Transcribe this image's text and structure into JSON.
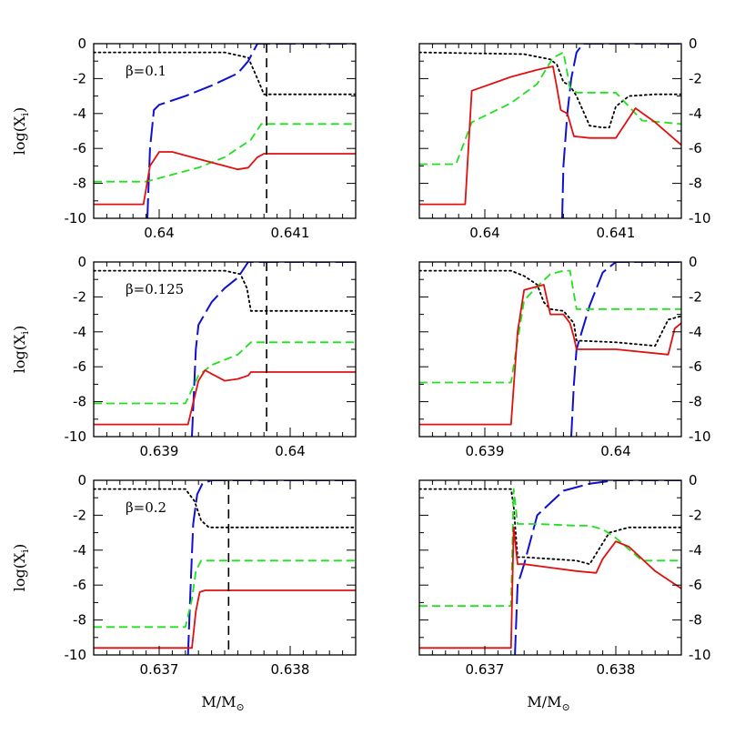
{
  "figure": {
    "ylabel": "log(X",
    "ylabel_sub": "i",
    "xlabel": "M/M",
    "xlabel_sub": "⊙",
    "colors": {
      "dotted": "#000000",
      "blue": "#1010d0",
      "green": "#20e020",
      "red": "#e01010",
      "vline": "#000000"
    }
  },
  "chart_data": [
    {
      "type": "line",
      "row": 0,
      "col": 0,
      "xlim": [
        0.6395,
        0.6415
      ],
      "ylim": [
        -10,
        0
      ],
      "xticks": [
        0.64,
        0.641
      ],
      "xtick_labels": [
        "0.64",
        "0.641"
      ],
      "yticks": [
        0,
        -2,
        -4,
        -6,
        -8,
        -10
      ],
      "ytick_labels": [
        "0",
        "-2",
        "-4",
        "-6",
        "-8",
        "-10"
      ],
      "annotation": "β=0.1",
      "vline": 0.64082,
      "series": [
        {
          "style": "dotted",
          "x": [
            0.6395,
            0.6405,
            0.64068,
            0.64075,
            0.6408,
            0.6415
          ],
          "y": [
            -0.5,
            -0.5,
            -0.8,
            -2.0,
            -2.9,
            -2.9
          ]
        },
        {
          "style": "blue",
          "x": [
            0.63991,
            0.63993,
            0.63996,
            0.64,
            0.6402,
            0.6404,
            0.6406,
            0.64068,
            0.64075,
            0.6415
          ],
          "y": [
            -10,
            -6,
            -3.8,
            -3.5,
            -3.0,
            -2.4,
            -1.7,
            -1.0,
            0,
            0
          ]
        },
        {
          "style": "green",
          "x": [
            0.6395,
            0.6399,
            0.6401,
            0.6403,
            0.6405,
            0.6407,
            0.64078,
            0.6415
          ],
          "y": [
            -7.9,
            -7.9,
            -7.5,
            -7.1,
            -6.5,
            -5.5,
            -4.6,
            -4.6
          ]
        },
        {
          "style": "red",
          "x": [
            0.6395,
            0.63988,
            0.63993,
            0.64,
            0.6401,
            0.6403,
            0.6405,
            0.6406,
            0.64068,
            0.64075,
            0.6408,
            0.6415
          ],
          "y": [
            -9.2,
            -9.2,
            -7.0,
            -6.2,
            -6.2,
            -6.6,
            -7.0,
            -7.2,
            -7.1,
            -6.5,
            -6.3,
            -6.3
          ]
        }
      ]
    },
    {
      "type": "line",
      "row": 0,
      "col": 1,
      "xlim": [
        0.6395,
        0.6415
      ],
      "ylim": [
        -10,
        0
      ],
      "xticks": [
        0.64,
        0.641
      ],
      "xtick_labels": [
        "0.64",
        "0.641"
      ],
      "yticks": [
        0,
        -2,
        -4,
        -6,
        -8,
        -10
      ],
      "ytick_labels": [
        "0",
        "-2",
        "-4",
        "-6",
        "-8",
        "-10"
      ],
      "annotation": "",
      "vline": null,
      "series": [
        {
          "style": "dotted",
          "x": [
            0.6395,
            0.6403,
            0.6405,
            0.64055,
            0.6406,
            0.64065,
            0.6407,
            0.6408,
            0.6409,
            0.64095,
            0.641,
            0.6411,
            0.6413,
            0.6415
          ],
          "y": [
            -0.5,
            -0.6,
            -0.9,
            -1.2,
            -2.2,
            -2.4,
            -3.0,
            -4.7,
            -4.8,
            -4.8,
            -3.6,
            -3.0,
            -2.9,
            -2.9
          ]
        },
        {
          "style": "blue",
          "x": [
            0.64059,
            0.6406,
            0.64063,
            0.64066,
            0.6407,
            0.64075,
            0.6415
          ],
          "y": [
            -10,
            -7,
            -4,
            -2,
            -0.5,
            0,
            0
          ]
        },
        {
          "style": "green",
          "x": [
            0.6395,
            0.63978,
            0.6399,
            0.6402,
            0.6404,
            0.64052,
            0.6406,
            0.64065,
            0.6407,
            0.641,
            0.6412,
            0.6415
          ],
          "y": [
            -6.9,
            -6.9,
            -4.5,
            -3.4,
            -2.3,
            -0.8,
            -0.5,
            -2.5,
            -2.8,
            -2.8,
            -4.4,
            -4.6
          ]
        },
        {
          "style": "red",
          "x": [
            0.6395,
            0.63985,
            0.6399,
            0.6402,
            0.6404,
            0.64052,
            0.64055,
            0.64058,
            0.64063,
            0.64068,
            0.6408,
            0.641,
            0.64115,
            0.6413,
            0.6415
          ],
          "y": [
            -9.2,
            -9.2,
            -2.7,
            -1.9,
            -1.5,
            -1.3,
            -2.5,
            -3.8,
            -4.0,
            -5.3,
            -5.4,
            -5.4,
            -3.7,
            -4.5,
            -5.8
          ]
        }
      ]
    },
    {
      "type": "line",
      "row": 1,
      "col": 0,
      "xlim": [
        0.6385,
        0.6405
      ],
      "ylim": [
        -10,
        0
      ],
      "xticks": [
        0.639,
        0.64
      ],
      "xtick_labels": [
        "0.639",
        "0.64"
      ],
      "yticks": [
        0,
        -2,
        -4,
        -6,
        -8,
        -10
      ],
      "ytick_labels": [
        "0",
        "-2",
        "-4",
        "-6",
        "-8",
        "-10"
      ],
      "annotation": "β=0.125",
      "vline": 0.63982,
      "series": [
        {
          "style": "dotted",
          "x": [
            0.6385,
            0.6395,
            0.63962,
            0.63967,
            0.6397,
            0.6405
          ],
          "y": [
            -0.5,
            -0.5,
            -0.7,
            -1.5,
            -2.8,
            -2.8
          ]
        },
        {
          "style": "blue",
          "x": [
            0.63925,
            0.63928,
            0.6393,
            0.6394,
            0.6395,
            0.6396,
            0.63968,
            0.6405
          ],
          "y": [
            -10,
            -5,
            -3.6,
            -2.3,
            -1.5,
            -0.9,
            0,
            0
          ]
        },
        {
          "style": "green",
          "x": [
            0.6385,
            0.6392,
            0.6393,
            0.6394,
            0.6396,
            0.6397,
            0.6405
          ],
          "y": [
            -8.1,
            -8.1,
            -6.5,
            -5.9,
            -5.3,
            -4.6,
            -4.6
          ]
        },
        {
          "style": "red",
          "x": [
            0.6385,
            0.63922,
            0.6393,
            0.63935,
            0.6394,
            0.6395,
            0.6396,
            0.63968,
            0.6397,
            0.6405
          ],
          "y": [
            -9.3,
            -9.3,
            -6.8,
            -6.2,
            -6.4,
            -6.8,
            -6.7,
            -6.5,
            -6.3,
            -6.3
          ]
        }
      ]
    },
    {
      "type": "line",
      "row": 1,
      "col": 1,
      "xlim": [
        0.6385,
        0.6405
      ],
      "ylim": [
        -10,
        0
      ],
      "xticks": [
        0.639,
        0.64
      ],
      "xtick_labels": [
        "0.639",
        "0.64"
      ],
      "yticks": [
        0,
        -2,
        -4,
        -6,
        -8,
        -10
      ],
      "ytick_labels": [
        "0",
        "-2",
        "-4",
        "-6",
        "-8",
        "-10"
      ],
      "annotation": "",
      "vline": null,
      "series": [
        {
          "style": "dotted",
          "x": [
            0.6385,
            0.6392,
            0.6393,
            0.6394,
            0.63945,
            0.6395,
            0.6396,
            0.63968,
            0.6397,
            0.64,
            0.6403,
            0.6404,
            0.6405
          ],
          "y": [
            -0.5,
            -0.5,
            -0.8,
            -1.3,
            -2.3,
            -2.7,
            -2.8,
            -3.5,
            -4.5,
            -4.6,
            -4.8,
            -3.3,
            -3.1
          ]
        },
        {
          "style": "blue",
          "x": [
            0.63966,
            0.63968,
            0.6397,
            0.6398,
            0.6399,
            0.64,
            0.6405
          ],
          "y": [
            -10,
            -7,
            -5,
            -2.5,
            -0.6,
            0,
            0
          ]
        },
        {
          "style": "green",
          "x": [
            0.6385,
            0.6392,
            0.63925,
            0.6393,
            0.6394,
            0.6395,
            0.6396,
            0.63965,
            0.6397,
            0.64,
            0.6405
          ],
          "y": [
            -6.9,
            -6.9,
            -4.5,
            -2.2,
            -1.4,
            -0.7,
            -0.5,
            -0.5,
            -2.7,
            -2.7,
            -2.7
          ]
        },
        {
          "style": "red",
          "x": [
            0.6385,
            0.6392,
            0.63925,
            0.6393,
            0.63945,
            0.6395,
            0.6396,
            0.63965,
            0.63968,
            0.6397,
            0.64,
            0.6404,
            0.64045,
            0.6405
          ],
          "y": [
            -9.3,
            -9.3,
            -4.0,
            -1.6,
            -1.3,
            -3.0,
            -3.0,
            -3.5,
            -4.3,
            -5.0,
            -5.0,
            -5.3,
            -3.8,
            -3.5
          ]
        }
      ]
    },
    {
      "type": "line",
      "row": 2,
      "col": 0,
      "xlim": [
        0.6365,
        0.6385
      ],
      "ylim": [
        -10,
        0
      ],
      "xticks": [
        0.637,
        0.638
      ],
      "xtick_labels": [
        "0.637",
        "0.638"
      ],
      "yticks": [
        0,
        -2,
        -4,
        -6,
        -8,
        -10
      ],
      "ytick_labels": [
        "0",
        "-2",
        "-4",
        "-6",
        "-8",
        "-10"
      ],
      "annotation": "β=0.2",
      "vline": 0.63753,
      "series": [
        {
          "style": "dotted",
          "x": [
            0.6365,
            0.6372,
            0.63727,
            0.63732,
            0.63738,
            0.6385
          ],
          "y": [
            -0.5,
            -0.5,
            -1.2,
            -2.3,
            -2.7,
            -2.7
          ]
        },
        {
          "style": "blue",
          "x": [
            0.63722,
            0.63724,
            0.63726,
            0.63729,
            0.63733,
            0.6374,
            0.6385
          ],
          "y": [
            -10,
            -6,
            -2.5,
            -0.8,
            -0.2,
            0,
            0
          ]
        },
        {
          "style": "green",
          "x": [
            0.6365,
            0.6372,
            0.63725,
            0.63728,
            0.63732,
            0.6385
          ],
          "y": [
            -8.4,
            -8.4,
            -6.8,
            -5.2,
            -4.6,
            -4.6
          ]
        },
        {
          "style": "red",
          "x": [
            0.6365,
            0.63725,
            0.63728,
            0.63731,
            0.63735,
            0.6385
          ],
          "y": [
            -9.6,
            -9.6,
            -7.5,
            -6.4,
            -6.3,
            -6.3
          ]
        }
      ]
    },
    {
      "type": "line",
      "row": 2,
      "col": 1,
      "xlim": [
        0.6365,
        0.6385
      ],
      "ylim": [
        -10,
        0
      ],
      "xticks": [
        0.637,
        0.638
      ],
      "xtick_labels": [
        "0.637",
        "0.638"
      ],
      "yticks": [
        0,
        -2,
        -4,
        -6,
        -8,
        -10
      ],
      "ytick_labels": [
        "0",
        "-2",
        "-4",
        "-6",
        "-8",
        "-10"
      ],
      "annotation": "",
      "vline": null,
      "series": [
        {
          "style": "dotted",
          "x": [
            0.6365,
            0.6372,
            0.63722,
            0.63725,
            0.6373,
            0.6377,
            0.6378,
            0.63795,
            0.6381,
            0.6385
          ],
          "y": [
            -0.5,
            -0.5,
            -1.5,
            -4.4,
            -4.4,
            -4.6,
            -4.8,
            -3.0,
            -2.7,
            -2.7
          ]
        },
        {
          "style": "blue",
          "x": [
            0.63723,
            0.63725,
            0.6373,
            0.6374,
            0.6376,
            0.6378,
            0.638,
            0.6385
          ],
          "y": [
            -10,
            -6,
            -4.8,
            -2.0,
            -0.6,
            -0.2,
            0,
            0
          ]
        },
        {
          "style": "green",
          "x": [
            0.6365,
            0.6372,
            0.63722,
            0.63725,
            0.6374,
            0.6377,
            0.6378,
            0.6379,
            0.638,
            0.6382,
            0.6385
          ],
          "y": [
            -7.2,
            -7.2,
            -0.5,
            -2.5,
            -2.5,
            -2.6,
            -2.6,
            -2.8,
            -3.3,
            -4.6,
            -4.6
          ]
        },
        {
          "style": "red",
          "x": [
            0.6365,
            0.6372,
            0.63722,
            0.63725,
            0.6373,
            0.6375,
            0.6377,
            0.63785,
            0.6379,
            0.638,
            0.6381,
            0.6383,
            0.6385
          ],
          "y": [
            -9.6,
            -9.6,
            -2.7,
            -4.8,
            -4.8,
            -5.0,
            -5.2,
            -5.3,
            -4.5,
            -3.5,
            -3.8,
            -5.2,
            -6.2
          ]
        }
      ]
    }
  ]
}
